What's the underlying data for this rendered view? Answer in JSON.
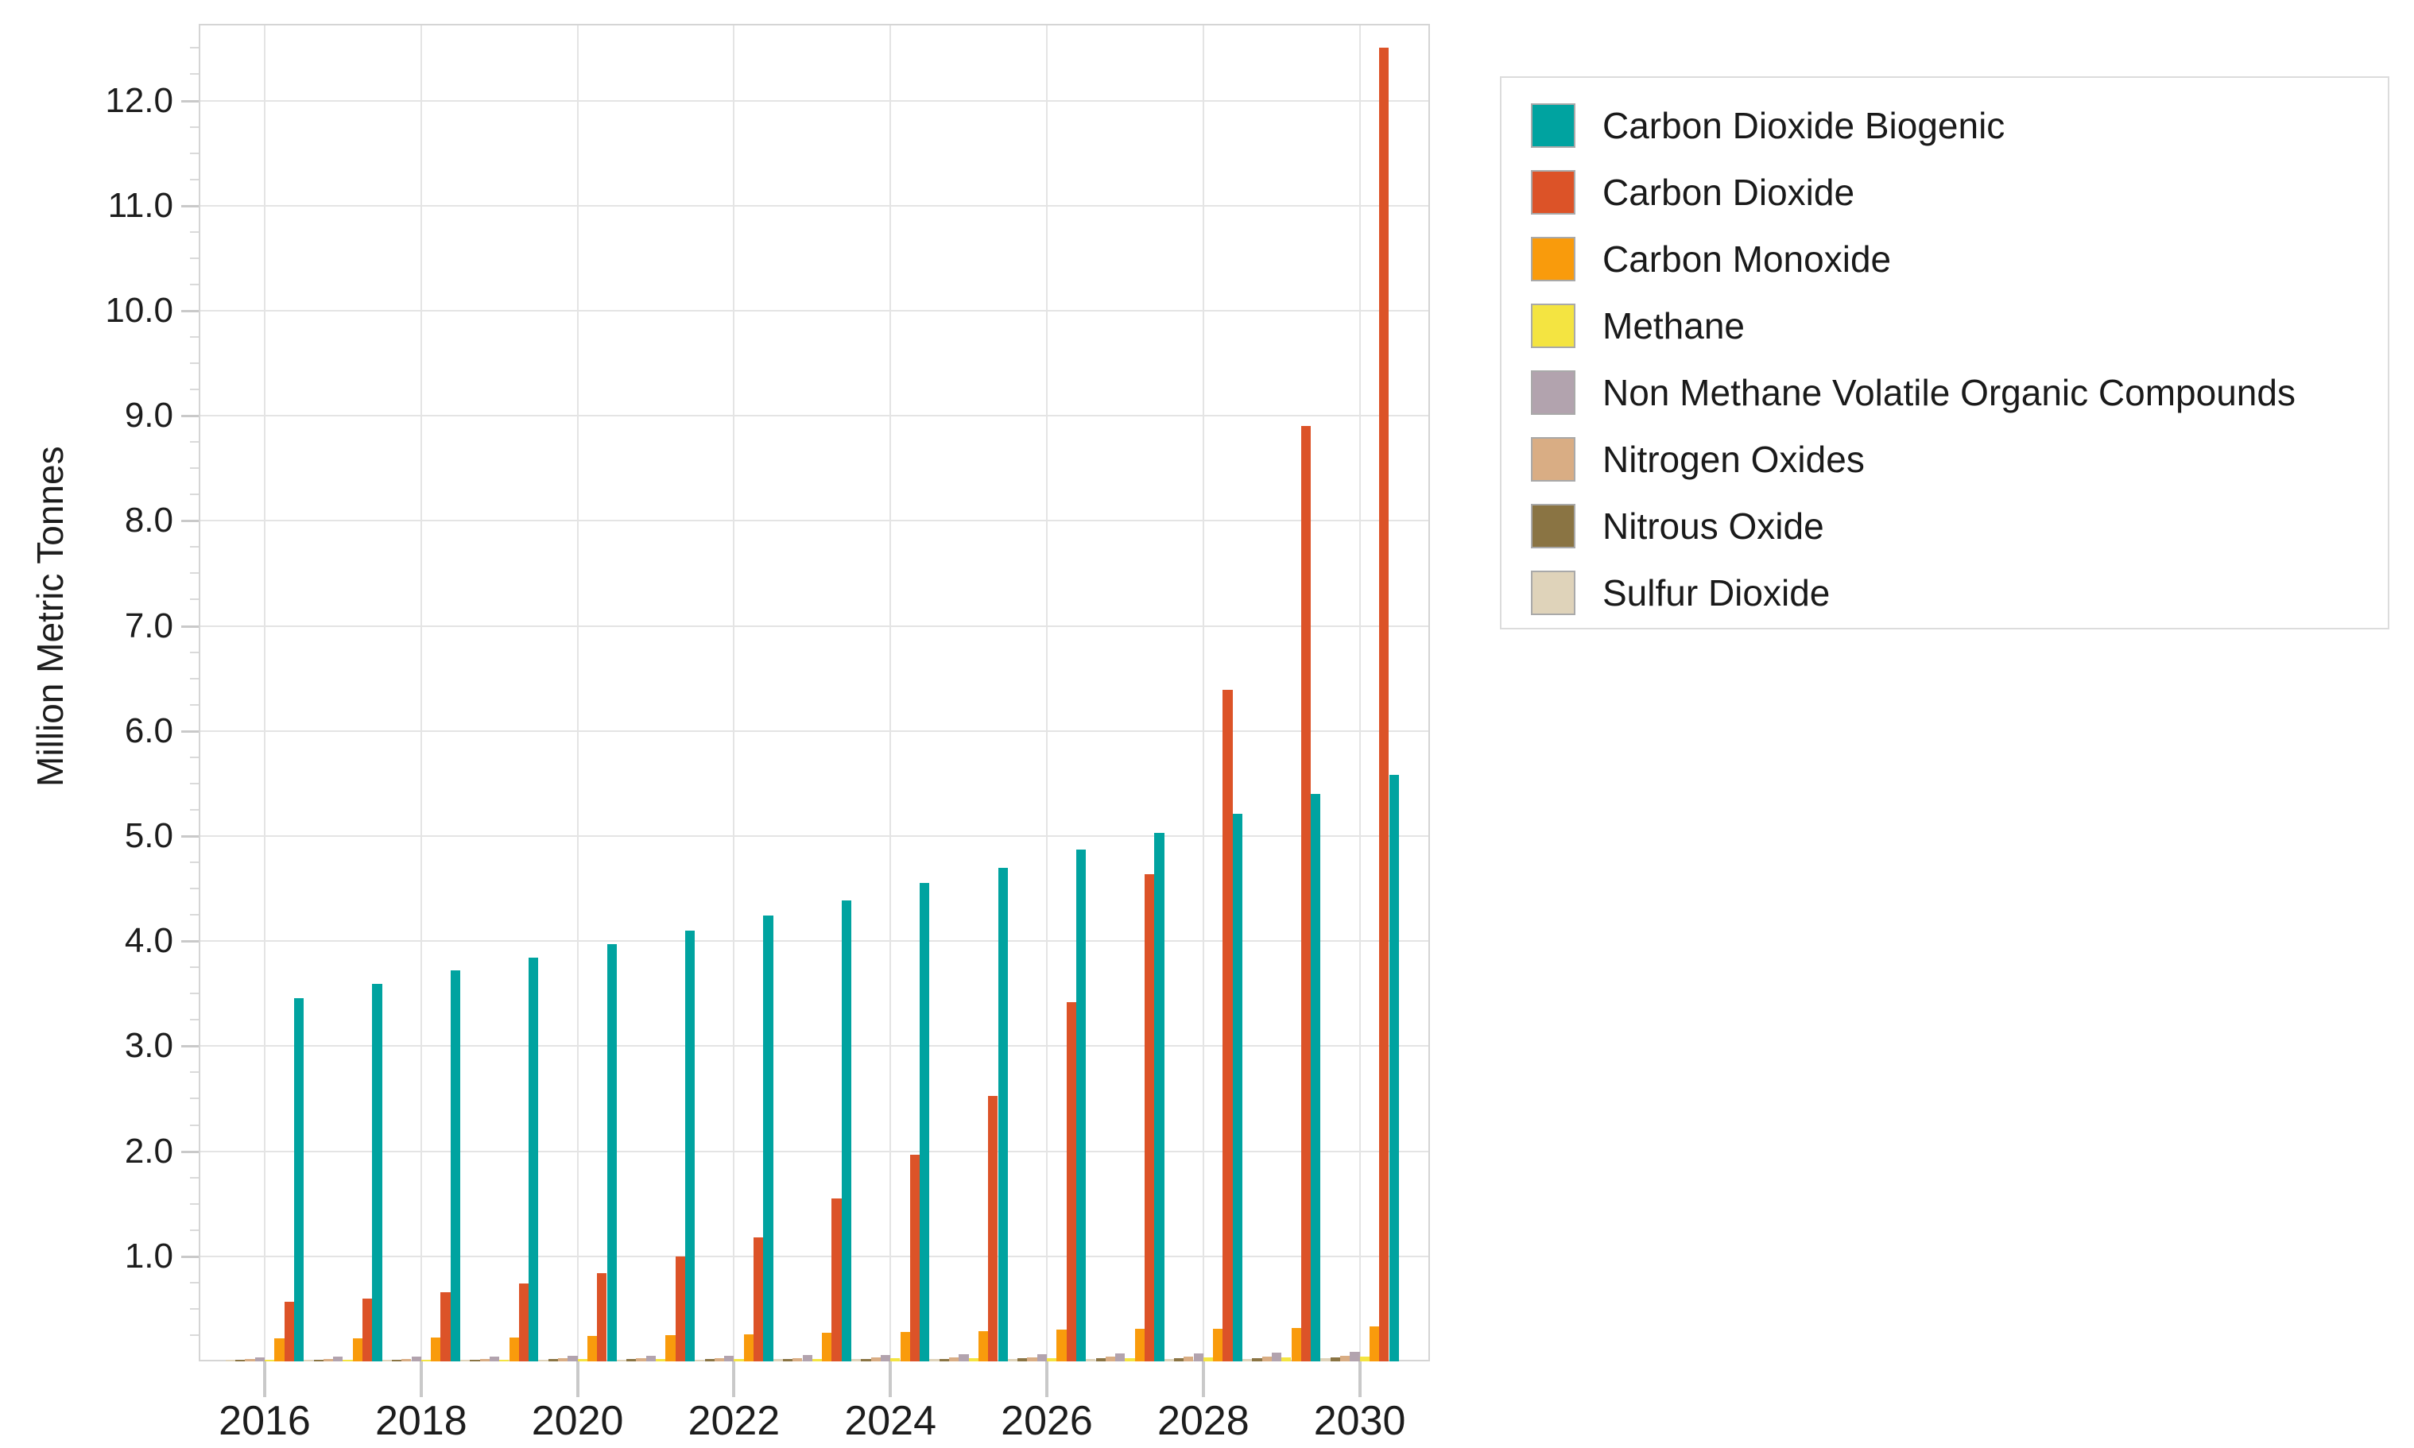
{
  "chart_data": {
    "type": "bar",
    "title": "",
    "xlabel": "",
    "ylabel": "Million Metric Tonnes",
    "ylim": [
      0,
      12.73
    ],
    "y_major_step": 1.0,
    "y_minor_step": 0.25,
    "grid": "horizontal gridlines at each 1.0; vertical gridlines at labeled (even) years",
    "legend_position": "outside top-right",
    "y_tick_labels": [
      "1.0",
      "2.0",
      "3.0",
      "4.0",
      "5.0",
      "6.0",
      "7.0",
      "8.0",
      "9.0",
      "10.0",
      "11.0",
      "12.0"
    ],
    "x_tick_labels": [
      "2016",
      "2018",
      "2020",
      "2022",
      "2024",
      "2026",
      "2028",
      "2030"
    ],
    "categories": [
      2016,
      2017,
      2018,
      2019,
      2020,
      2021,
      2022,
      2023,
      2024,
      2025,
      2026,
      2027,
      2028,
      2029,
      2030
    ],
    "bar_draw_order": "reverse of legend order (Sulfur Dioxide leftmost, Carbon Dioxide Biogenic rightmost)",
    "series": [
      {
        "name": "Carbon Dioxide Biogenic",
        "color": "#00a3a0",
        "values": [
          3.46,
          3.59,
          3.72,
          3.84,
          3.97,
          4.1,
          4.24,
          4.39,
          4.55,
          4.7,
          4.87,
          5.03,
          5.21,
          5.4,
          5.58
        ]
      },
      {
        "name": "Carbon Dioxide",
        "color": "#dc5328",
        "values": [
          0.57,
          0.6,
          0.66,
          0.74,
          0.84,
          1.0,
          1.18,
          1.55,
          1.97,
          2.53,
          3.42,
          4.64,
          6.39,
          8.9,
          12.5
        ]
      },
      {
        "name": "Carbon Monoxide",
        "color": "#f99b0c",
        "values": [
          0.22,
          0.22,
          0.23,
          0.23,
          0.24,
          0.25,
          0.26,
          0.27,
          0.28,
          0.29,
          0.3,
          0.31,
          0.31,
          0.32,
          0.33
        ]
      },
      {
        "name": "Methane",
        "color": "#f4e441",
        "values": [
          0.015,
          0.016,
          0.017,
          0.018,
          0.02,
          0.021,
          0.023,
          0.025,
          0.027,
          0.029,
          0.031,
          0.034,
          0.037,
          0.04,
          0.044
        ]
      },
      {
        "name": "Non Methane Volatile Organic Compounds",
        "color": "#b2a3ae",
        "values": [
          0.04,
          0.042,
          0.045,
          0.047,
          0.05,
          0.053,
          0.056,
          0.059,
          0.063,
          0.066,
          0.07,
          0.074,
          0.079,
          0.083,
          0.088
        ]
      },
      {
        "name": "Nitrogen Oxides",
        "color": "#d9ad84",
        "values": [
          0.022,
          0.023,
          0.025,
          0.026,
          0.028,
          0.029,
          0.031,
          0.033,
          0.035,
          0.037,
          0.039,
          0.042,
          0.044,
          0.047,
          0.05
        ]
      },
      {
        "name": "Nitrous Oxide",
        "color": "#8a7443",
        "values": [
          0.015,
          0.016,
          0.017,
          0.018,
          0.019,
          0.02,
          0.021,
          0.022,
          0.024,
          0.025,
          0.027,
          0.029,
          0.031,
          0.033,
          0.035
        ]
      },
      {
        "name": "Sulfur Dioxide",
        "color": "#dfd3ba",
        "values": [
          0.012,
          0.013,
          0.014,
          0.015,
          0.016,
          0.017,
          0.018,
          0.019,
          0.02,
          0.021,
          0.022,
          0.023,
          0.025,
          0.026,
          0.028
        ]
      }
    ]
  },
  "legend": {
    "items": [
      "Carbon Dioxide Biogenic",
      "Carbon Dioxide",
      "Carbon Monoxide",
      "Methane",
      "Non Methane Volatile Organic Compounds",
      "Nitrogen Oxides",
      "Nitrous Oxide",
      "Sulfur Dioxide"
    ]
  }
}
